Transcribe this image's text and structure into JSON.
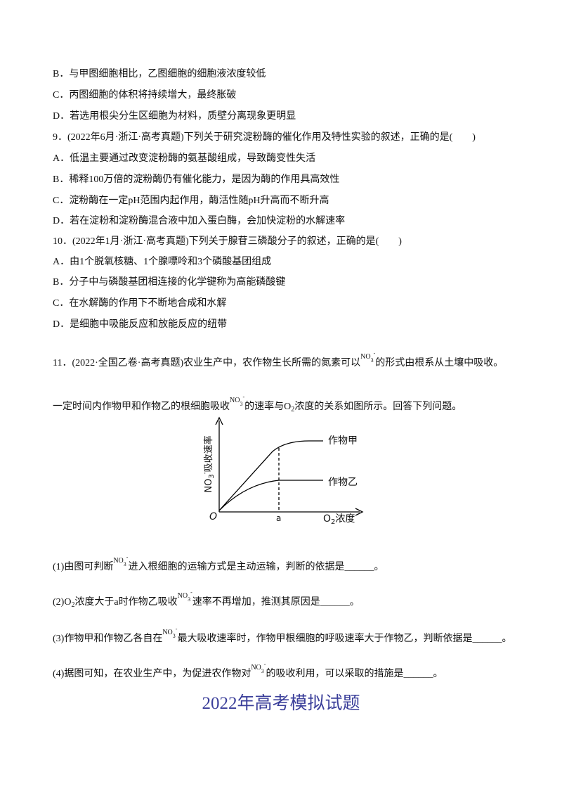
{
  "lines": [
    [
      {
        "text": "B．与甲图细胞相比，乙图细胞的细胞液浓度较低"
      }
    ],
    [
      {
        "text": "C．丙图细胞的体积将持续增大，最终胀破"
      }
    ],
    [
      {
        "text": "D．若选用根尖分生区细胞为材料，质壁分离现象更明显"
      }
    ],
    [
      {
        "text": "9．(2022年6月·浙江·高考真题)下列关于研究淀粉酶的催化作用及特性实验的叙述，正确的是(　　)"
      }
    ],
    [
      {
        "text": "A．低温主要通过改变淀粉酶的氨基酸组成，导致酶变性失活"
      }
    ],
    [
      {
        "text": "B．稀释100万倍的淀粉酶仍有催化能力，是因为酶的作用具高效性"
      }
    ],
    [
      {
        "text": "C．淀粉酶在一定pH范围内起作用，酶活性随pH升高而不断升高"
      }
    ],
    [
      {
        "text": "D．若在淀粉和淀粉酶混合液中加入蛋白酶，会加快淀粉的水解速率"
      }
    ],
    [
      {
        "text": "10．(2022年1月·浙江·高考真题)下列关于腺苷三磷酸分子的叙述，正确的是(　　)"
      }
    ],
    [
      {
        "text": "A．由1个脱氧核糖、1个腺嘌呤和3个磷酸基团组成"
      }
    ],
    [
      {
        "text": "B．分子中与磷酸基团相连接的化学键称为高能磷酸键"
      }
    ],
    [
      {
        "text": "C．在水解酶的作用下不断地合成和水解"
      }
    ],
    [
      {
        "text": "D．是细胞中吸能反应和放能反应的纽带"
      }
    ],
    [
      {
        "text": "11．(2022·全国乙卷·高考真题)农业生产中，农作物生长所需的氮素可以"
      },
      {
        "text": "NO",
        "style": "raised"
      },
      {
        "text": "3",
        "style": "raised-sub"
      },
      {
        "text": "-",
        "style": "raised-sup"
      },
      {
        "text": "的形式由根系从土壤中吸收。"
      }
    ],
    [
      {
        "text": "一定时间内作物甲和作物乙的根细胞吸收"
      },
      {
        "text": "NO",
        "style": "raised"
      },
      {
        "text": "3",
        "style": "raised-sub"
      },
      {
        "text": "-",
        "style": "raised-sup"
      },
      {
        "text": "的速率与O"
      },
      {
        "text": "2",
        "style": "sub"
      },
      {
        "text": "浓度的关系如图所示。回答下列问题。"
      }
    ],
    [
      {
        "text": "(1)由图可判断"
      },
      {
        "text": "NO",
        "style": "raised"
      },
      {
        "text": "3",
        "style": "raised-sub"
      },
      {
        "text": "-",
        "style": "raised-sup"
      },
      {
        "text": "进入根细胞的运输方式是主动运输，判断的依据是______。"
      }
    ],
    [
      {
        "text": "(2)O"
      },
      {
        "text": "2",
        "style": "sub"
      },
      {
        "text": "浓度大于a时作物乙吸收"
      },
      {
        "text": "NO",
        "style": "raised"
      },
      {
        "text": "3",
        "style": "raised-sub"
      },
      {
        "text": "-",
        "style": "raised-sup"
      },
      {
        "text": "速率不再增加，推测其原因是______。"
      }
    ],
    [
      {
        "text": "(3)作物甲和作物乙各自在"
      },
      {
        "text": "NO",
        "style": "raised"
      },
      {
        "text": "3",
        "style": "raised-sub"
      },
      {
        "text": "-",
        "style": "raised-sup"
      },
      {
        "text": "最大吸收速率时，作物甲根细胞的呼吸速率大于作物乙，判断依据是______。"
      }
    ],
    [
      {
        "text": "(4)据图可知，在农业生产中，为促进农作物对"
      },
      {
        "text": "NO",
        "style": "raised"
      },
      {
        "text": "3",
        "style": "raised-sub"
      },
      {
        "text": "-",
        "style": "raised-sup"
      },
      {
        "text": "的吸收利用，可以采取的措施是______。"
      }
    ]
  ],
  "figure": {
    "y_label": [
      {
        "text": "NO"
      },
      {
        "text": "3",
        "style": "sub"
      },
      {
        "text": "-",
        "style": "sup"
      },
      {
        "text": "吸收速率"
      }
    ],
    "curve_labels": [
      "作物甲",
      "作物乙"
    ],
    "origin": "O",
    "x_mark": "a",
    "x_label": [
      {
        "text": "O"
      },
      {
        "text": "2",
        "style": "sub"
      },
      {
        "text": "浓度"
      }
    ]
  },
  "footer": "2022年高考模拟试题"
}
